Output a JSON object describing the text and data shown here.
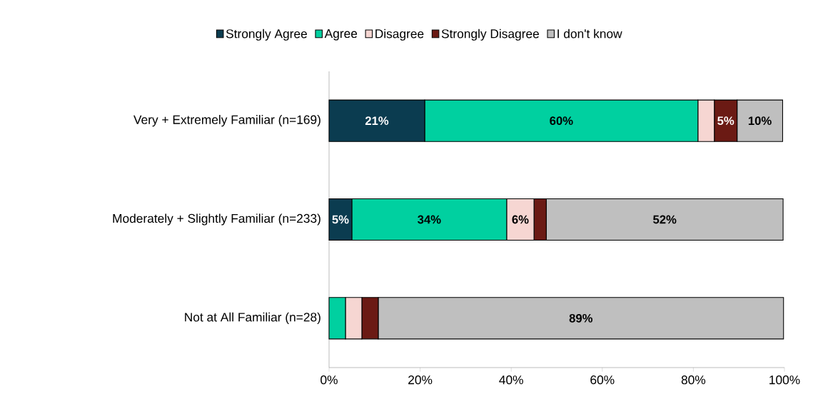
{
  "chart_data": {
    "type": "bar",
    "orientation": "horizontal",
    "stacked": true,
    "categories": [
      "Very + Extremely Familiar (n=169)",
      "Moderately + Slightly Familiar (n=233)",
      "Not at All Familiar (n=28)"
    ],
    "series": [
      {
        "name": "Strongly Agree",
        "color": "#0b3c50",
        "values": [
          21,
          5,
          0
        ],
        "value_labels": [
          "21%",
          "5%",
          null
        ]
      },
      {
        "name": "Agree",
        "color": "#00d0a0",
        "values": [
          60,
          34,
          3.6
        ],
        "value_labels": [
          "60%",
          "34%",
          null
        ]
      },
      {
        "name": "Disagree",
        "color": "#f6d6d2",
        "values": [
          3.6,
          6,
          3.6
        ],
        "value_labels": [
          null,
          "6%",
          null
        ]
      },
      {
        "name": "Strongly Disagree",
        "color": "#6b1a14",
        "values": [
          5,
          2.7,
          3.6
        ],
        "value_labels": [
          "5%",
          null,
          null
        ]
      },
      {
        "name": "I don't know",
        "color": "#bfbfbf",
        "values": [
          10,
          52,
          89
        ],
        "value_labels": [
          "10%",
          "52%",
          "89%"
        ]
      }
    ],
    "xlim": [
      0,
      100
    ],
    "xticks": [
      {
        "value": 0,
        "label": "0%"
      },
      {
        "value": 20,
        "label": "20%"
      },
      {
        "value": 40,
        "label": "40%"
      },
      {
        "value": 60,
        "label": "60%"
      },
      {
        "value": 80,
        "label": "80%"
      },
      {
        "value": 100,
        "label": "100%"
      }
    ],
    "legend": "top",
    "grid": false
  }
}
